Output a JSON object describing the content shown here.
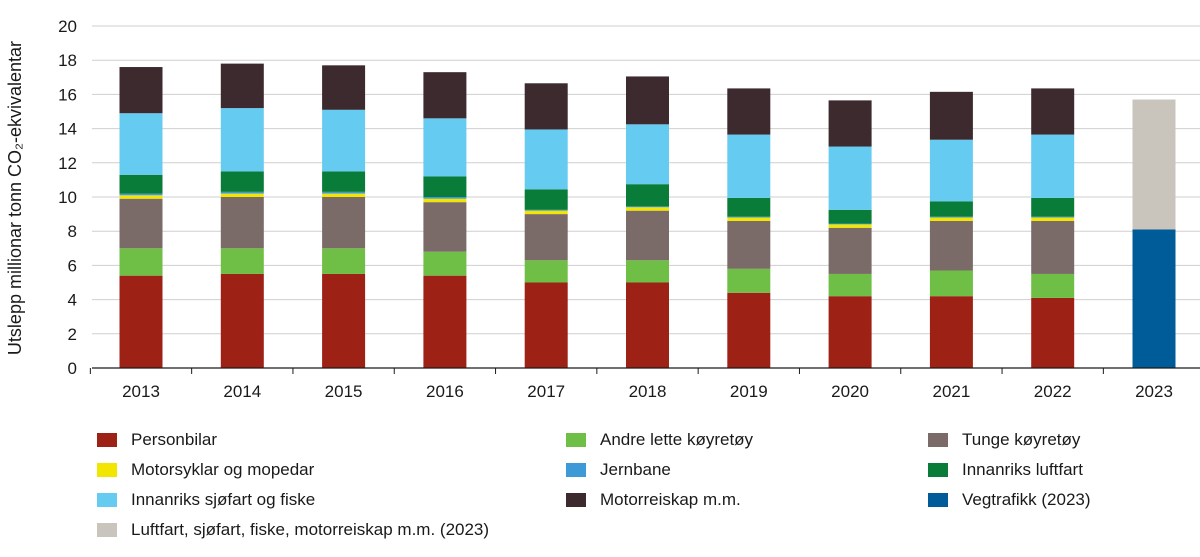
{
  "chart_data": {
    "type": "bar",
    "stacked": true,
    "ylabel": "Utslepp millionar tonn CO₂-ekvivalentar",
    "ylim": [
      0,
      20
    ],
    "yticks": [
      0,
      2,
      4,
      6,
      8,
      10,
      12,
      14,
      16,
      18,
      20
    ],
    "grid": true,
    "legend_position": "bottom",
    "categories": [
      "2013",
      "2014",
      "2015",
      "2016",
      "2017",
      "2018",
      "2019",
      "2020",
      "2021",
      "2022",
      "2023"
    ],
    "series": [
      {
        "name": "Personbilar",
        "color": "#9e2116",
        "values": [
          5.4,
          5.5,
          5.5,
          5.4,
          5.0,
          5.0,
          4.4,
          4.2,
          4.2,
          4.1,
          null
        ]
      },
      {
        "name": "Andre lette køyretøy",
        "color": "#6fbe45",
        "values": [
          1.6,
          1.5,
          1.5,
          1.4,
          1.3,
          1.3,
          1.4,
          1.3,
          1.5,
          1.4,
          null
        ]
      },
      {
        "name": "Tunge køyretøy",
        "color": "#7a6b69",
        "values": [
          2.9,
          3.0,
          3.0,
          2.9,
          2.7,
          2.9,
          2.8,
          2.7,
          2.9,
          3.1,
          null
        ]
      },
      {
        "name": "Motorsyklar og mopedar",
        "color": "#f2e600",
        "values": [
          0.2,
          0.2,
          0.2,
          0.2,
          0.2,
          0.2,
          0.2,
          0.2,
          0.2,
          0.2,
          null
        ]
      },
      {
        "name": "Jernbane",
        "color": "#3e9ad6",
        "values": [
          0.1,
          0.1,
          0.1,
          0.1,
          0.05,
          0.05,
          0.05,
          0.05,
          0.05,
          0.05,
          null
        ]
      },
      {
        "name": "Innanriks luftfart",
        "color": "#0a7c3a",
        "values": [
          1.1,
          1.2,
          1.2,
          1.2,
          1.2,
          1.3,
          1.1,
          0.8,
          0.9,
          1.1,
          null
        ]
      },
      {
        "name": "Innanriks sjøfart og fiske",
        "color": "#66cbf1",
        "values": [
          3.6,
          3.7,
          3.6,
          3.4,
          3.5,
          3.5,
          3.7,
          3.7,
          3.6,
          3.7,
          null
        ]
      },
      {
        "name": "Motorreiskap m.m.",
        "color": "#3c2a2e",
        "values": [
          2.7,
          2.6,
          2.6,
          2.7,
          2.7,
          2.8,
          2.7,
          2.7,
          2.8,
          2.7,
          null
        ]
      },
      {
        "name": "Vegtrafikk (2023)",
        "color": "#005b99",
        "values": [
          null,
          null,
          null,
          null,
          null,
          null,
          null,
          null,
          null,
          null,
          8.1
        ]
      },
      {
        "name": "Luftfart, sjøfart, fiske, motorreiskap m.m. (2023)",
        "color": "#c9c4bc",
        "values": [
          null,
          null,
          null,
          null,
          null,
          null,
          null,
          null,
          null,
          null,
          7.6
        ]
      }
    ]
  },
  "legend": [
    {
      "label": "Personbilar",
      "color": "#9e2116"
    },
    {
      "label": "Andre lette køyretøy",
      "color": "#6fbe45"
    },
    {
      "label": "Tunge køyretøy",
      "color": "#7a6b69"
    },
    {
      "label": "Motorsyklar og mopedar",
      "color": "#f2e600"
    },
    {
      "label": "Jernbane",
      "color": "#3e9ad6"
    },
    {
      "label": "Innanriks luftfart",
      "color": "#0a7c3a"
    },
    {
      "label": "Innanriks sjøfart og fiske",
      "color": "#66cbf1"
    },
    {
      "label": "Motorreiskap m.m.",
      "color": "#3c2a2e"
    },
    {
      "label": "Vegtrafikk (2023)",
      "color": "#005b99"
    },
    {
      "label": "Luftfart, sjøfart, fiske, motorreiskap m.m. (2023)",
      "color": "#c9c4bc"
    }
  ]
}
